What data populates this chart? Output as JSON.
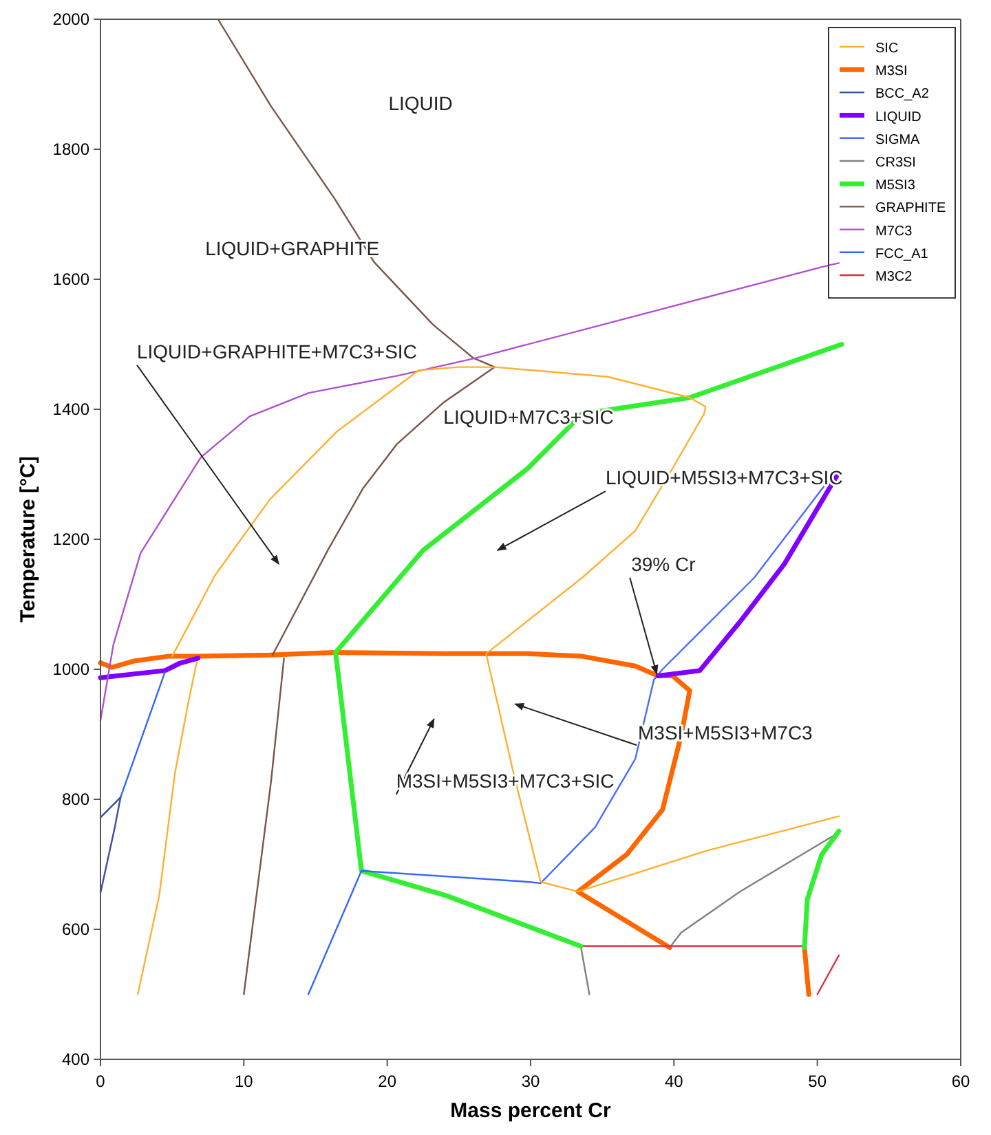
{
  "chart_data": {
    "type": "line",
    "xlabel": "Mass percent Cr",
    "ylabel": "Temperature [°C]",
    "xlim": [
      0,
      60
    ],
    "ylim": [
      400,
      2000
    ],
    "xticks": [
      0,
      10,
      20,
      30,
      40,
      50,
      60
    ],
    "yticks": [
      400,
      600,
      800,
      1000,
      1200,
      1400,
      1600,
      1800,
      2000
    ],
    "grid": false,
    "legend": "top right",
    "marker": "none",
    "line_style": "solid",
    "series": [
      {
        "name": "SIC",
        "color": "#ffb030",
        "x": [
          2.6,
          4.1,
          5.2,
          6.1,
          6.8
        ],
        "values": [
          500,
          652,
          841,
          946,
          1020
        ]
      },
      {
        "name": "M3SI",
        "color": "#ff6600",
        "x": [
          0,
          0.8,
          2.4,
          4.7,
          6.8,
          11.8,
          16.3,
          24.1,
          29.8,
          33.6,
          37.3,
          38.9,
          39.9,
          41.1,
          40.5,
          39.2,
          36.7,
          33.3,
          39.7
        ],
        "values": [
          1010,
          1003,
          1013,
          1020,
          1020,
          1022,
          1026,
          1024,
          1024,
          1020,
          1005,
          990,
          990,
          967,
          898,
          784,
          715,
          658,
          572
        ]
      },
      {
        "name": "BCC_A2",
        "color": "#3a4fa0",
        "x": [
          0,
          1.0,
          1.4
        ],
        "values": [
          656,
          757,
          803
        ]
      },
      {
        "name": "LIQUID",
        "color": "#8000ff",
        "x": [
          0,
          2.4,
          4.5,
          5.5,
          6.8
        ],
        "values": [
          987,
          993,
          998,
          1009,
          1017
        ]
      },
      {
        "name": "SIGMA",
        "color": "#4a6cff",
        "x": [
          30.7,
          34.5,
          37.3,
          38.6,
          39.2,
          45.6,
          51.0
        ],
        "values": [
          671,
          757,
          862,
          984,
          1000,
          1141,
          1297
        ]
      },
      {
        "name": "CR3SI",
        "color": "#808080",
        "x": [
          39.7,
          40.5,
          44.6,
          51.5
        ],
        "values": [
          572,
          595,
          658,
          749
        ]
      },
      {
        "name": "M5SI3",
        "color": "#33ee33",
        "x": [
          16.4,
          22.5,
          29.8,
          33.6,
          41.1,
          51.7
        ],
        "values": [
          1026,
          1183,
          1309,
          1393,
          1418,
          1500
        ]
      },
      {
        "name": "GRAPHITE",
        "color": "#7a5548",
        "x": [
          8.2,
          11.9,
          16.3,
          19.1,
          23.2,
          26.0,
          27.5,
          23.9,
          20.7,
          18.3,
          15.9,
          12.0
        ],
        "values": [
          2000,
          1866,
          1725,
          1626,
          1530,
          1479,
          1465,
          1410,
          1347,
          1278,
          1185,
          1022
        ]
      },
      {
        "name": "M7C3",
        "color": "#b050d0",
        "x": [
          0,
          0.9,
          2.8,
          7.0,
          10.4,
          14.5,
          20.8,
          26.2,
          50.5,
          51.5
        ],
        "values": [
          921,
          1038,
          1179,
          1326,
          1389,
          1425,
          1452,
          1479,
          1620,
          1625
        ]
      },
      {
        "name": "FCC_A1",
        "color": "#3366ff",
        "x": [
          4.5,
          1.4
        ],
        "values": [
          996,
          803
        ]
      },
      {
        "name": "M3C2",
        "color": "#e03040",
        "x": [
          33.5,
          49.1
        ],
        "values": [
          574,
          574
        ]
      },
      {
        "color": "#ffb030",
        "x": [
          5.0,
          8.0,
          11.8,
          16.5,
          22.2,
          25.0,
          27.5,
          35.4,
          41.1,
          42.2,
          42.1,
          39.9,
          37.3,
          33.6,
          26.9,
          28.8,
          30.7
        ],
        "values": [
          1020,
          1145,
          1261,
          1366,
          1460,
          1465,
          1465,
          1450,
          1418,
          1404,
          1393,
          1309,
          1213,
          1141,
          1024,
          841,
          673
        ]
      },
      {
        "color": "#ffb030",
        "x": [
          30.7,
          33.3,
          42.3,
          51.5
        ],
        "values": [
          673,
          658,
          721,
          774
        ]
      },
      {
        "color": "#ff6600",
        "x": [
          49.1,
          49.4
        ],
        "values": [
          572,
          500
        ]
      },
      {
        "color": "#3a4fa0",
        "x": [
          0,
          1.4
        ],
        "values": [
          772,
          803
        ]
      },
      {
        "color": "#8000ff",
        "x": [
          38.9,
          41.8,
          44.6,
          47.7,
          51.5
        ],
        "values": [
          990,
          998,
          1073,
          1162,
          1303
        ]
      },
      {
        "color": "#808080",
        "x": [
          33.5,
          34.1
        ],
        "values": [
          574,
          500
        ]
      },
      {
        "color": "#33ee33",
        "x": [
          16.4,
          18.2,
          24.1,
          33.5
        ],
        "values": [
          1026,
          690,
          652,
          574
        ]
      },
      {
        "color": "#33ee33",
        "x": [
          49.1,
          49.3,
          50.3,
          51.5
        ],
        "values": [
          572,
          646,
          715,
          751
        ]
      },
      {
        "color": "#7a5548",
        "x": [
          12.8,
          11.9,
          10.0
        ],
        "values": [
          1017,
          828,
          500
        ]
      },
      {
        "color": "#3366ff",
        "x": [
          14.5,
          18.2,
          29.8,
          30.7
        ],
        "values": [
          500,
          690,
          673,
          671
        ]
      },
      {
        "color": "#e03040",
        "x": [
          50.0,
          51.5
        ],
        "values": [
          500,
          560
        ]
      }
    ],
    "annotations": [
      "LIQUID",
      "LIQUID+GRAPHITE",
      "LIQUID+GRAPHITE+M7C3+SIC",
      "LIQUID+M7C3+SIC",
      "LIQUID+M5SI3+M7C3+SIC",
      {
        "text": "39% Cr",
        "x": 38.8,
        "y": 993
      },
      "M3SI+M5SI3+M7C3",
      "M3SI+M5SI3+M7C3+SIC"
    ]
  }
}
